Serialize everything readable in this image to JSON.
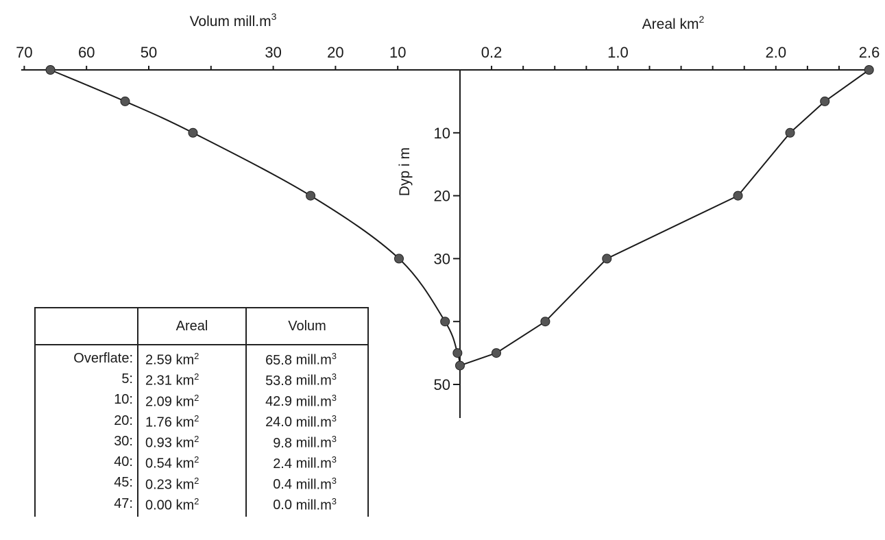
{
  "chart_data": {
    "type": "line",
    "left_panel": {
      "xlabel": "Volum mill.m",
      "xlabel_sup": "3",
      "x_ticks": [
        "70",
        "60",
        "50",
        "30",
        "20",
        "10"
      ],
      "xlim": [
        70,
        0
      ],
      "series": [
        {
          "points": [
            {
              "depth": 0,
              "value": 65.8
            },
            {
              "depth": 5,
              "value": 53.8
            },
            {
              "depth": 10,
              "value": 42.9
            },
            {
              "depth": 20,
              "value": 24.0
            },
            {
              "depth": 30,
              "value": 9.8
            },
            {
              "depth": 40,
              "value": 2.4
            },
            {
              "depth": 45,
              "value": 0.4
            },
            {
              "depth": 47,
              "value": 0.0
            }
          ]
        }
      ]
    },
    "right_panel": {
      "xlabel": "Areal km",
      "xlabel_sup": "2",
      "x_ticks": [
        "0.2",
        "1.0",
        "2.0",
        "2.6"
      ],
      "xlim": [
        0,
        2.6
      ],
      "series": [
        {
          "points": [
            {
              "depth": 0,
              "value": 2.59
            },
            {
              "depth": 5,
              "value": 2.31
            },
            {
              "depth": 10,
              "value": 2.09
            },
            {
              "depth": 20,
              "value": 1.76
            },
            {
              "depth": 30,
              "value": 0.93
            },
            {
              "depth": 40,
              "value": 0.54
            },
            {
              "depth": 45,
              "value": 0.23
            },
            {
              "depth": 47,
              "value": 0.0
            }
          ]
        }
      ]
    },
    "y_axis": {
      "ylabel": "Dyp i m",
      "y_ticks": [
        "10",
        "20",
        "30",
        "50"
      ],
      "ylim": [
        0,
        55
      ]
    }
  },
  "table": {
    "headers": [
      "",
      "Areal",
      "Volum"
    ],
    "rows": [
      {
        "depth": "Overflate:",
        "area": "2.59 km",
        "area_sup": "2",
        "volume": "65.8",
        "volume_unit": "mill.m",
        "volume_sup": "3"
      },
      {
        "depth": "5:",
        "area": "2.31 km",
        "area_sup": "2",
        "volume": "53.8",
        "volume_unit": "mill.m",
        "volume_sup": "3"
      },
      {
        "depth": "10:",
        "area": "2.09 km",
        "area_sup": "2",
        "volume": "42.9",
        "volume_unit": "mill.m",
        "volume_sup": "3"
      },
      {
        "depth": "20:",
        "area": "1.76 km",
        "area_sup": "2",
        "volume": "24.0",
        "volume_unit": "mill.m",
        "volume_sup": "3"
      },
      {
        "depth": "30:",
        "area": "0.93 km",
        "area_sup": "2",
        "volume": "9.8",
        "volume_unit": "mill.m",
        "volume_sup": "3"
      },
      {
        "depth": "40:",
        "area": "0.54 km",
        "area_sup": "2",
        "volume": "2.4",
        "volume_unit": "mill.m",
        "volume_sup": "3"
      },
      {
        "depth": "45:",
        "area": "0.23 km",
        "area_sup": "2",
        "volume": "0.4",
        "volume_unit": "mill.m",
        "volume_sup": "3"
      },
      {
        "depth": "47:",
        "area": "0.00 km",
        "area_sup": "2",
        "volume": "0.0",
        "volume_unit": "mill.m",
        "volume_sup": "3"
      }
    ]
  },
  "colors": {
    "ink": "#1a1a1a",
    "marker": "#555555"
  }
}
